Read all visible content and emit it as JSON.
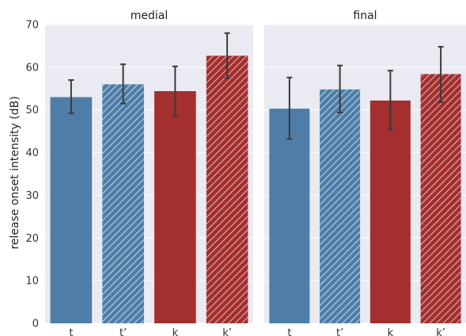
{
  "chart_data": {
    "type": "bar",
    "ylabel": "release onset intensity (dB)",
    "ylim": [
      0,
      70
    ],
    "yticks": [
      0,
      10,
      20,
      30,
      40,
      50,
      60,
      70
    ],
    "categories": [
      "t",
      "t’",
      "k",
      "k’"
    ],
    "grid": true,
    "colors": {
      "blue": "#4e7ea8",
      "red": "#a3302f",
      "panel_bg": "#eaeaf2",
      "errorbar": "#3a3a3a"
    },
    "hatched": [
      false,
      true,
      false,
      true
    ],
    "panels": [
      {
        "title": "medial",
        "values": [
          53.0,
          56.0,
          54.4,
          62.7
        ],
        "error_low": [
          49.2,
          51.5,
          48.6,
          57.4
        ],
        "error_high": [
          57.0,
          60.7,
          60.2,
          68.0
        ]
      },
      {
        "title": "final",
        "values": [
          50.3,
          54.8,
          52.2,
          58.4
        ],
        "error_low": [
          43.2,
          49.4,
          45.5,
          51.8
        ],
        "error_high": [
          57.6,
          60.4,
          59.2,
          64.8
        ]
      }
    ]
  }
}
